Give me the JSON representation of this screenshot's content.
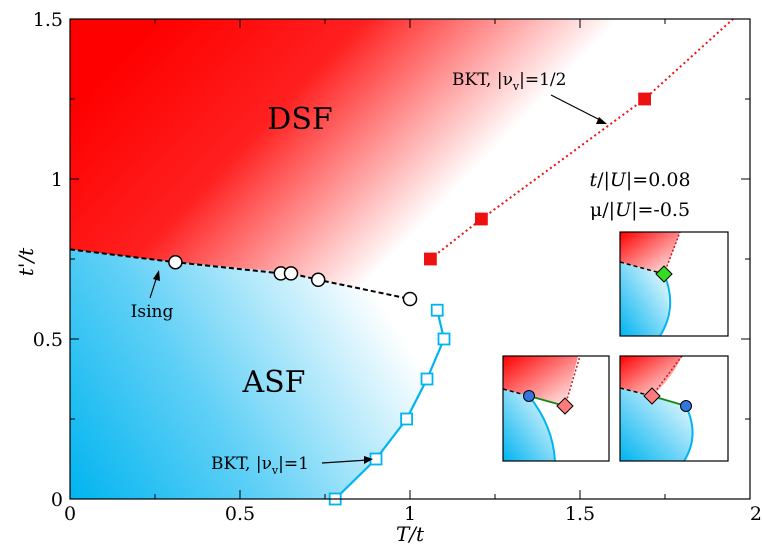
{
  "chart_data": {
    "type": "scatter",
    "xlabel": "T/t",
    "ylabel": "t'/t",
    "xlim": [
      0,
      2
    ],
    "ylim": [
      0,
      1.5
    ],
    "x_ticks": [
      {
        "value": 0,
        "label": "0"
      },
      {
        "value": 0.5,
        "label": "0.5"
      },
      {
        "value": 1,
        "label": "1"
      },
      {
        "value": 1.5,
        "label": "1.5"
      },
      {
        "value": 2,
        "label": "2"
      }
    ],
    "y_ticks": [
      {
        "value": 0,
        "label": "0"
      },
      {
        "value": 0.5,
        "label": "0.5"
      },
      {
        "value": 1,
        "label": "1"
      },
      {
        "value": 1.5,
        "label": "1.5"
      }
    ],
    "regions": {
      "dsf": {
        "label": "DSF",
        "color": "#ff0000",
        "boundary": [
          [
            0,
            0.78
          ],
          [
            0.31,
            0.74
          ],
          [
            0.62,
            0.71
          ],
          [
            0.73,
            0.685
          ],
          [
            1.0,
            0.625
          ],
          [
            1.06,
            0.75
          ],
          [
            1.21,
            0.875
          ],
          [
            1.69,
            1.25
          ],
          [
            1.95,
            1.5
          ],
          [
            0,
            1.5
          ]
        ]
      },
      "asf": {
        "label": "ASF",
        "color": "#00b4f0",
        "boundary": [
          [
            0,
            0.78
          ],
          [
            0.31,
            0.74
          ],
          [
            0.62,
            0.71
          ],
          [
            0.73,
            0.685
          ],
          [
            1.0,
            0.625
          ],
          [
            1.08,
            0.59
          ],
          [
            1.1,
            0.5
          ],
          [
            1.05,
            0.375
          ],
          [
            0.99,
            0.25
          ],
          [
            0.9,
            0.125
          ],
          [
            0.78,
            0
          ],
          [
            0,
            0
          ]
        ]
      }
    },
    "series": [
      {
        "style": "dashed",
        "line_color": "#000000",
        "marker": "circle",
        "marker_fill": "#ffffff",
        "line_x": [
          0,
          0.31,
          0.62,
          0.65,
          0.73,
          1.0
        ],
        "line_y": [
          0.78,
          0.74,
          0.705,
          0.705,
          0.685,
          0.625
        ],
        "x": [
          0.31,
          0.62,
          0.65,
          0.73,
          1.0
        ],
        "y": [
          0.74,
          0.705,
          0.705,
          0.685,
          0.625
        ]
      },
      {
        "style": "dotted",
        "line_color": "#ee1111",
        "marker": "square",
        "marker_fill": "#ee1111",
        "line_x": [
          1.06,
          1.21,
          1.69,
          1.95
        ],
        "line_y": [
          0.75,
          0.875,
          1.25,
          1.5
        ],
        "x": [
          1.06,
          1.21,
          1.69
        ],
        "y": [
          0.75,
          0.875,
          1.25
        ]
      },
      {
        "style": "solid",
        "line_color": "#00b4f0",
        "marker": "square",
        "marker_fill": "#ffffff",
        "line_x": [
          0.78,
          0.9,
          0.99,
          1.05,
          1.1,
          1.08
        ],
        "line_y": [
          0,
          0.125,
          0.25,
          0.375,
          0.5,
          0.59
        ],
        "x": [
          0.78,
          0.9,
          0.99,
          1.05,
          1.1,
          1.08
        ],
        "y": [
          0,
          0.125,
          0.25,
          0.375,
          0.5,
          0.59
        ]
      }
    ],
    "annotations": {
      "ising": "Ising",
      "bkt_half_prefix": "BKT, |ν",
      "bkt_half_sub": "v",
      "bkt_half_suffix": "|=1/2",
      "bkt_one_prefix": "BKT, |ν",
      "bkt_one_sub": "v",
      "bkt_one_suffix": "|=1",
      "param1_a": "t",
      "param1_b": "/|",
      "param1_c": "U",
      "param1_d": "|=0.08",
      "param2_a": "μ/|",
      "param2_b": "U",
      "param2_c": "|=-0.5"
    },
    "insets": [
      {
        "id": "top",
        "markers": [
          {
            "shape": "diamond",
            "color": "#33dd22"
          }
        ]
      },
      {
        "id": "bottom-left",
        "markers": [
          {
            "shape": "circle",
            "color": "#3377dd"
          },
          {
            "shape": "diamond",
            "color": "#ff7a7a"
          }
        ]
      },
      {
        "id": "bottom-right",
        "markers": [
          {
            "shape": "diamond",
            "color": "#ff7a7a"
          },
          {
            "shape": "circle",
            "color": "#3377dd"
          }
        ]
      }
    ]
  }
}
